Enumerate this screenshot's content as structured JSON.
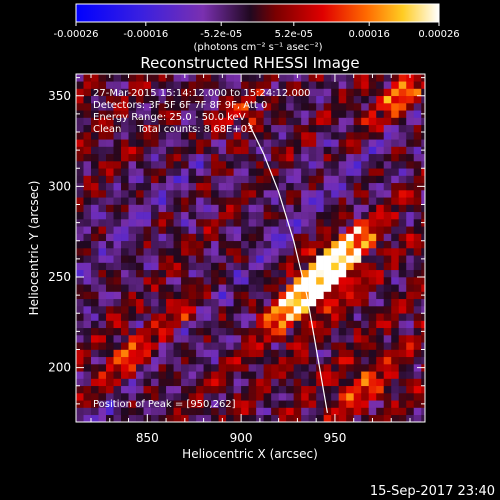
{
  "chart_data": {
    "type": "heatmap",
    "title": "Reconstructed RHESSI Image",
    "xlabel": "Heliocentric X (arcsec)",
    "ylabel": "Heliocentric Y (arcsec)",
    "xlim": [
      812,
      998
    ],
    "ylim": [
      170,
      362
    ],
    "x_ticks": [
      "850",
      "900",
      "950"
    ],
    "x_tick_values": [
      850,
      900,
      950
    ],
    "y_ticks": [
      "200",
      "250",
      "300",
      "350"
    ],
    "y_tick_values": [
      200,
      250,
      300,
      350
    ],
    "colorbar": {
      "ticks": [
        "-0.00026",
        "-0.00016",
        "-5.2e-05",
        "5.2e-05",
        "0.00016",
        "0.00026"
      ],
      "tick_values": [
        -0.00026,
        -0.00016,
        -5.2e-05,
        5.2e-05,
        0.00016,
        0.00026
      ],
      "range": [
        -0.00026,
        0.00026
      ],
      "units": "(photons cm⁻² s⁻¹ asec⁻²)",
      "colors": [
        "#0000ff",
        "#6a2cc8",
        "#2a0a2a",
        "#aa0000",
        "#ff6600",
        "#ffcc22",
        "#ffffff"
      ]
    },
    "annotations": [
      "27-Mar-2015 15:14:12.000 to 15:24:12.000",
      "Detectors: 3F 5F 6F 7F 8F 9F, Att 0",
      "Energy Range: 25.0 - 50.0 keV",
      "Clean     Total counts: 8.68E+03"
    ],
    "peak_label": "Position of Peak = [950,262]",
    "peak": [
      950,
      262
    ],
    "limb_curve": {
      "x": [
        904,
        912,
        920,
        928,
        935,
        941,
        946
      ],
      "y": [
        335,
        318,
        297,
        270,
        240,
        205,
        175
      ]
    },
    "bright_sources": [
      {
        "x": 950,
        "y": 262,
        "amp": 0.00026
      },
      {
        "x": 945,
        "y": 248,
        "amp": 0.00022
      },
      {
        "x": 930,
        "y": 238,
        "amp": 0.00018
      },
      {
        "x": 985,
        "y": 350,
        "amp": 0.0002
      },
      {
        "x": 900,
        "y": 340,
        "amp": 0.00015
      },
      {
        "x": 840,
        "y": 205,
        "amp": 0.00016
      },
      {
        "x": 965,
        "y": 190,
        "amp": 0.00012
      },
      {
        "x": 870,
        "y": 230,
        "amp": 9e-05
      }
    ],
    "grid": false
  },
  "footer": {
    "timestamp": "15-Sep-2017 23:40"
  }
}
